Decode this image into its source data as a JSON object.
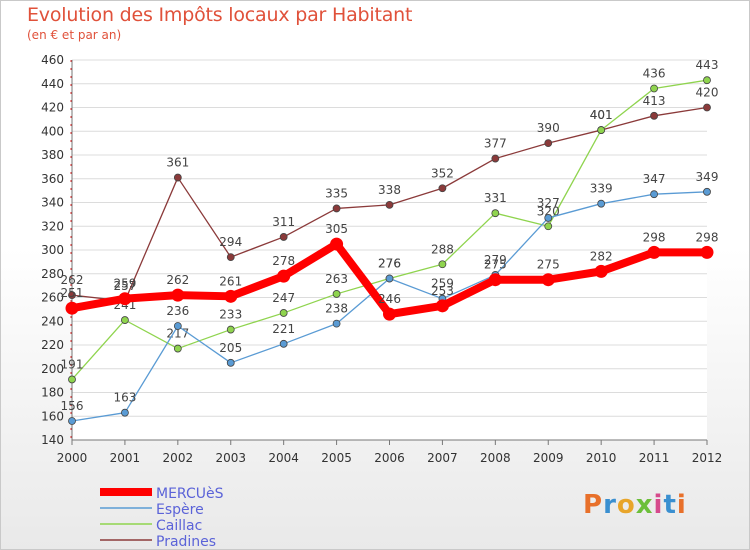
{
  "chart_data": {
    "type": "line",
    "title": "Evolution des Impôts locaux par Habitant",
    "subtitle": "(en € et par an)",
    "x": [
      "2000",
      "2001",
      "2002",
      "2003",
      "2004",
      "2005",
      "2006",
      "2007",
      "2008",
      "2009",
      "2010",
      "2011",
      "2012"
    ],
    "yticks": [
      140,
      160,
      180,
      200,
      220,
      240,
      260,
      280,
      300,
      320,
      340,
      360,
      380,
      400,
      420,
      440,
      460
    ],
    "ylim": [
      140,
      460
    ],
    "grid": "horizontal",
    "legend_position": "bottom-left",
    "series": [
      {
        "name": "Pradines",
        "color": "#8b3a3a",
        "values": [
          262,
          257,
          361,
          294,
          311,
          335,
          338,
          352,
          377,
          390,
          401,
          413,
          420
        ],
        "labels": [
          "262",
          "257",
          "361",
          "294",
          "311",
          "335",
          "338",
          "352",
          "377",
          "390",
          "401",
          "413",
          "420"
        ]
      },
      {
        "name": "Caillac",
        "color": "#8fd44e",
        "values": [
          191,
          241,
          217,
          233,
          247,
          263,
          276,
          288,
          331,
          320,
          401,
          436,
          443
        ],
        "labels": [
          "191",
          "241",
          "217",
          "233",
          "247",
          "263",
          "276",
          "288",
          "331",
          "320",
          "401",
          "436",
          "443"
        ]
      },
      {
        "name": "Espère",
        "color": "#5a9bd4",
        "values": [
          156,
          163,
          236,
          205,
          221,
          238,
          276,
          259,
          279,
          327,
          339,
          347,
          349
        ],
        "labels": [
          "156",
          "163",
          "236",
          "205",
          "221",
          "238",
          "276",
          "259",
          "279",
          "327",
          "339",
          "347",
          "349"
        ]
      },
      {
        "name": "MERCUèS",
        "color": "#ff0000",
        "values": [
          251,
          259,
          262,
          261,
          278,
          305,
          246,
          253,
          275,
          275,
          282,
          298,
          298
        ],
        "labels": [
          "251",
          "259",
          "262",
          "261",
          "278",
          "305",
          "246",
          "253",
          "275",
          "275",
          "282",
          "298",
          "298"
        ]
      }
    ],
    "legend": [
      "MERCUèS",
      "Espère",
      "Caillac",
      "Pradines"
    ]
  },
  "logo_text": [
    "P",
    "r",
    "o",
    "x",
    "i",
    "t",
    "i"
  ]
}
